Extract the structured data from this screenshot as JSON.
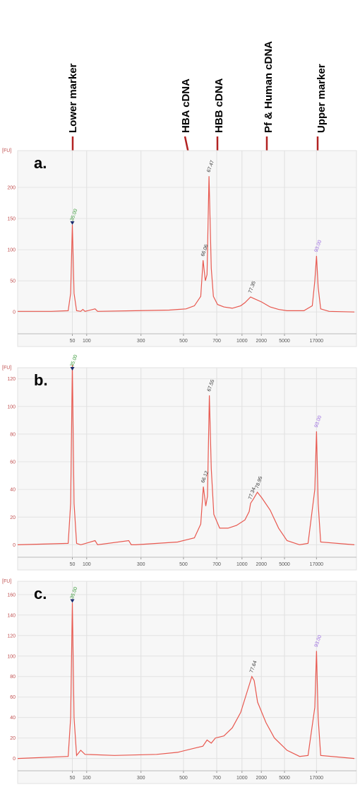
{
  "annotations": [
    "Lower marker",
    "HBA cDNA",
    "HBB cDNA",
    "Pf & Human cDNA",
    "Upper marker"
  ],
  "chart_data": [
    {
      "type": "line",
      "label": "a.",
      "y_label": "[FU]",
      "color": "#e8584f",
      "x": [
        22,
        30,
        34,
        34.6,
        35,
        35.4,
        36,
        37,
        37.5,
        38,
        40.4,
        41,
        50,
        58,
        62,
        64,
        65.5,
        66.06,
        66.6,
        67.0,
        67.47,
        68,
        68.5,
        69.5,
        71,
        73,
        75,
        76,
        77.35,
        78,
        80,
        82,
        84,
        86,
        90,
        92,
        92.6,
        93,
        93.4,
        94,
        96,
        102
      ],
      "values": [
        1,
        1,
        2,
        30,
        140,
        30,
        2,
        1,
        4,
        1,
        5,
        1,
        2,
        3,
        5,
        10,
        25,
        83,
        50,
        60,
        218,
        70,
        25,
        12,
        8,
        6,
        10,
        15,
        24,
        22,
        16,
        8,
        4,
        2,
        2,
        10,
        50,
        90,
        40,
        5,
        1,
        0
      ],
      "xlim": [
        22,
        102.5
      ],
      "xticks": [
        {
          "value": 35,
          "label": "50"
        },
        {
          "value": 38.4,
          "label": "100"
        },
        {
          "value": 51.3,
          "label": "300"
        },
        {
          "value": 61.4,
          "label": "500"
        },
        {
          "value": 69.3,
          "label": "700"
        },
        {
          "value": 75.3,
          "label": "1000"
        },
        {
          "value": 79.9,
          "label": "2000"
        },
        {
          "value": 85.4,
          "label": "5000"
        },
        {
          "value": 93,
          "label": "17000"
        }
      ],
      "ylim": [
        -35,
        259
      ],
      "yticks": [
        0,
        50,
        100,
        150,
        200
      ],
      "peaks": {
        "x": [
          35,
          66.06,
          67.47,
          77.35,
          93
        ],
        "value_labels": [
          "35.00",
          "66.06",
          "67.47",
          "77.35",
          "93.00"
        ],
        "colors": [
          "#3a9a3a",
          "#333333",
          "#333333",
          "#333333",
          "#9a6ae0"
        ]
      }
    },
    {
      "type": "line",
      "label": "b.",
      "y_label": "[FU]",
      "color": "#e8584f",
      "x": [
        22,
        34,
        34.6,
        35,
        35.4,
        36,
        37,
        40.4,
        41,
        48.4,
        49,
        50,
        60,
        64,
        65.5,
        66.12,
        66.7,
        67.1,
        67.55,
        68,
        68.6,
        70,
        72,
        74,
        76,
        77,
        77.34,
        78,
        78.95,
        80,
        82,
        84,
        86,
        89,
        91,
        92.6,
        93,
        93.4,
        94,
        102
      ],
      "values": [
        0,
        1,
        30,
        130,
        30,
        1,
        0,
        3,
        0,
        3,
        0,
        0,
        2,
        5,
        15,
        42,
        28,
        35,
        108,
        55,
        22,
        12,
        12,
        14,
        18,
        24,
        30,
        33,
        38,
        34,
        25,
        12,
        3,
        0,
        1,
        40,
        82,
        30,
        2,
        0
      ],
      "xlim": [
        22,
        102.5
      ],
      "xticks": [
        {
          "value": 35,
          "label": "50"
        },
        {
          "value": 38.4,
          "label": "100"
        },
        {
          "value": 51.3,
          "label": "300"
        },
        {
          "value": 61.4,
          "label": "500"
        },
        {
          "value": 69.3,
          "label": "700"
        },
        {
          "value": 75.3,
          "label": "1000"
        },
        {
          "value": 79.9,
          "label": "2000"
        },
        {
          "value": 85.4,
          "label": "5000"
        },
        {
          "value": 93,
          "label": "17000"
        }
      ],
      "ylim": [
        -9,
        128
      ],
      "yticks": [
        0,
        20,
        40,
        60,
        80,
        100,
        120
      ],
      "peaks": {
        "x": [
          35,
          66.12,
          67.55,
          77.34,
          78.95,
          93
        ],
        "value_labels": [
          "35.00",
          "66.12",
          "67.55",
          "77.34",
          "78.95",
          "93.00"
        ],
        "colors": [
          "#3a9a3a",
          "#333333",
          "#333333",
          "#333333",
          "#333333",
          "#9a6ae0"
        ]
      }
    },
    {
      "type": "line",
      "label": "c.",
      "y_label": "[FU]",
      "color": "#e8584f",
      "x": [
        22,
        34,
        34.6,
        35,
        35.4,
        36,
        37,
        38,
        45,
        55,
        60,
        64,
        66,
        67,
        68,
        69,
        71,
        73,
        75,
        76.5,
        77.64,
        78.2,
        79,
        81,
        83,
        86,
        89,
        91,
        92.6,
        93,
        93.4,
        94,
        102
      ],
      "values": [
        0,
        2,
        40,
        152,
        40,
        3,
        8,
        4,
        3,
        4,
        6,
        10,
        12,
        18,
        15,
        20,
        22,
        30,
        45,
        65,
        80,
        76,
        55,
        35,
        20,
        8,
        2,
        3,
        50,
        105,
        40,
        3,
        0
      ],
      "xlim": [
        22,
        102.5
      ],
      "xticks": [
        {
          "value": 35,
          "label": "50"
        },
        {
          "value": 38.4,
          "label": "100"
        },
        {
          "value": 51.3,
          "label": "300"
        },
        {
          "value": 61.4,
          "label": "500"
        },
        {
          "value": 69.3,
          "label": "700"
        },
        {
          "value": 75.3,
          "label": "1000"
        },
        {
          "value": 79.9,
          "label": "2000"
        },
        {
          "value": 85.4,
          "label": "5000"
        },
        {
          "value": 93,
          "label": "17000"
        }
      ],
      "ylim": [
        -12,
        173
      ],
      "yticks": [
        0,
        20,
        40,
        60,
        80,
        100,
        120,
        140,
        160
      ],
      "peaks": {
        "x": [
          35,
          77.64,
          93
        ],
        "value_labels": [
          "35.00",
          "77.64",
          "93.00"
        ],
        "colors": [
          "#3a9a3a",
          "#333333",
          "#9a6ae0"
        ]
      }
    }
  ]
}
